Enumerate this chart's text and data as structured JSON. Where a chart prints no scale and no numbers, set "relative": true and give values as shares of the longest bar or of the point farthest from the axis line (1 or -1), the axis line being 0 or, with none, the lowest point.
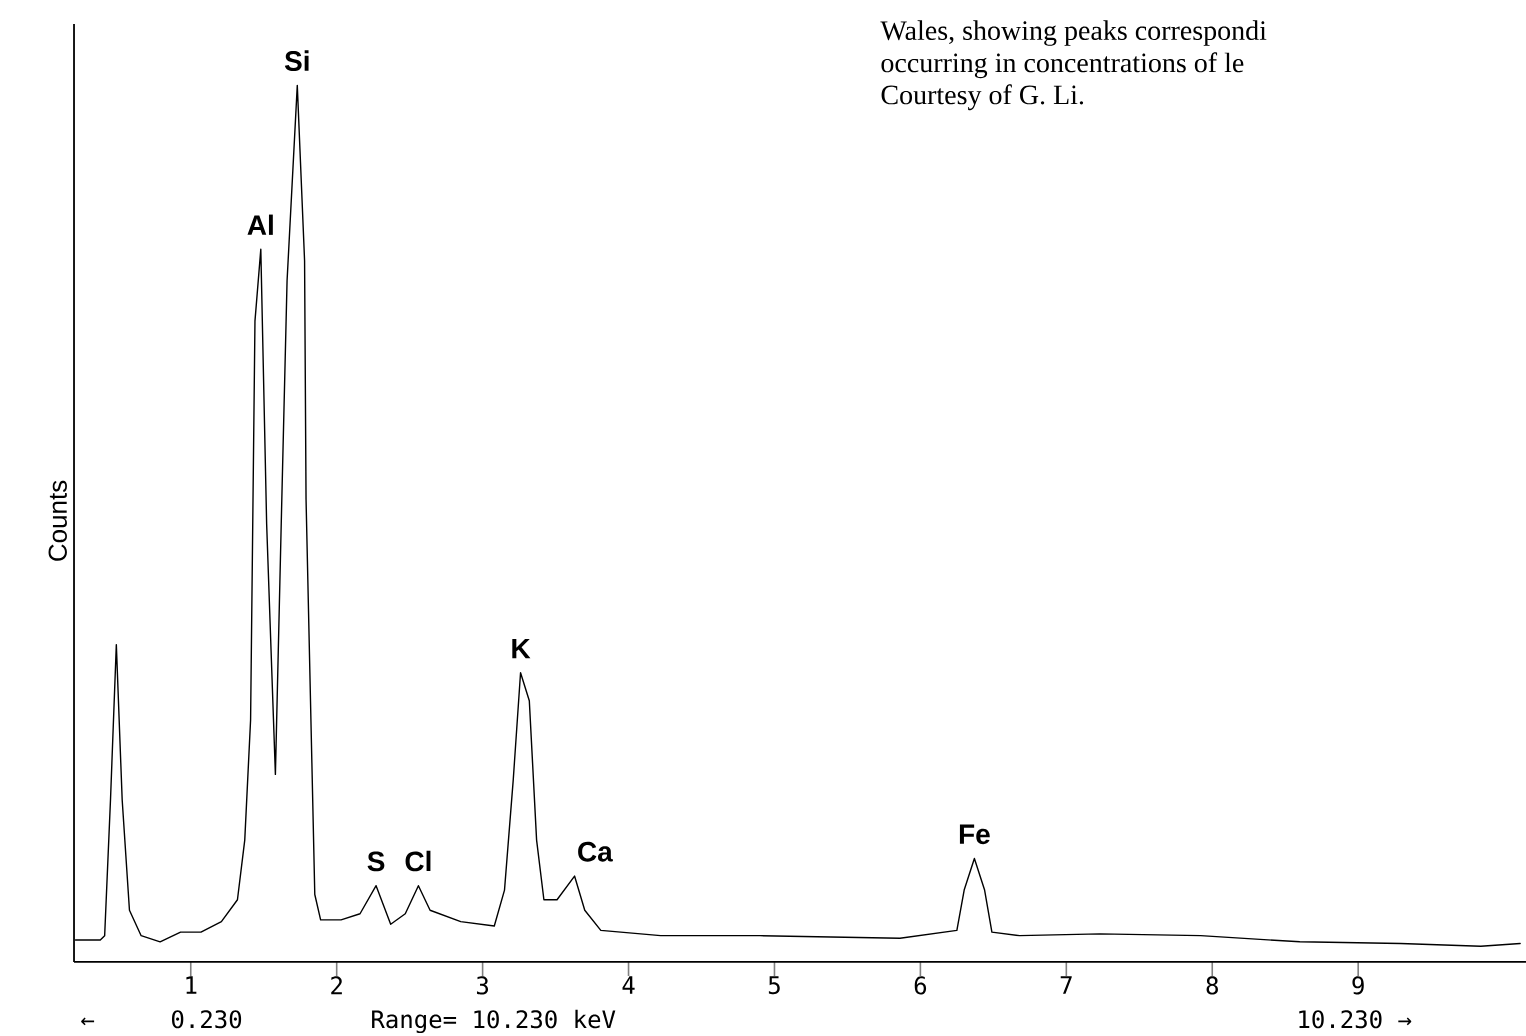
{
  "chart_data": {
    "type": "line",
    "ylabel": "Counts",
    "relative": true,
    "x": [
      0.21,
      0.38,
      0.41,
      0.45,
      0.49,
      0.53,
      0.58,
      0.66,
      0.79,
      0.93,
      1.07,
      1.21,
      1.32,
      1.37,
      1.41,
      1.44,
      1.48,
      1.52,
      1.58,
      1.62,
      1.66,
      1.73,
      1.78,
      1.79,
      1.85,
      1.89,
      2.03,
      2.16,
      2.27,
      2.37,
      2.47,
      2.56,
      2.64,
      2.85,
      3.08,
      3.15,
      3.21,
      3.26,
      3.32,
      3.37,
      3.42,
      3.51,
      3.63,
      3.7,
      3.81,
      4.22,
      4.9,
      5.86,
      6.25,
      6.3,
      6.37,
      6.44,
      6.49,
      6.68,
      7.23,
      7.92,
      8.6,
      9.29,
      9.84,
      10.11
    ],
    "series": [
      {
        "color": "#000000",
        "values": [
          0.025,
          0.025,
          0.03,
          0.185,
          0.362,
          0.185,
          0.059,
          0.03,
          0.023,
          0.034,
          0.034,
          0.046,
          0.071,
          0.139,
          0.276,
          0.731,
          0.813,
          0.5,
          0.214,
          0.5,
          0.777,
          1.0,
          0.8,
          0.528,
          0.077,
          0.048,
          0.048,
          0.055,
          0.087,
          0.043,
          0.055,
          0.087,
          0.059,
          0.046,
          0.041,
          0.082,
          0.208,
          0.33,
          0.298,
          0.139,
          0.071,
          0.071,
          0.098,
          0.059,
          0.036,
          0.03,
          0.03,
          0.027,
          0.036,
          0.082,
          0.118,
          0.082,
          0.034,
          0.03,
          0.032,
          0.03,
          0.023,
          0.021,
          0.018,
          0.021
        ]
      }
    ],
    "xlim": [
      0.2,
      10.15
    ],
    "xticks": [
      1,
      2,
      3,
      4,
      5,
      6,
      7,
      8,
      9
    ],
    "marker": "none",
    "line_style": "solid",
    "annotations": [
      {
        "text": "Si",
        "x": 1.73,
        "y": 1.0
      },
      {
        "text": "Al",
        "x": 1.48,
        "y": 0.813
      },
      {
        "text": "S",
        "x": 2.27,
        "y": 0.087
      },
      {
        "text": "Cl",
        "x": 2.56,
        "y": 0.087
      },
      {
        "text": "K",
        "x": 3.26,
        "y": 0.33
      },
      {
        "text": "Ca",
        "x": 3.63,
        "y": 0.098
      },
      {
        "text": "Fe",
        "x": 6.37,
        "y": 0.118
      },
      "Wales, showing peaks correspondi",
      "occurring in concentrations of le",
      "Courtesy of G. Li.",
      "←",
      "0.230",
      "Range= 10.230 keV",
      "10.230 →"
    ]
  }
}
